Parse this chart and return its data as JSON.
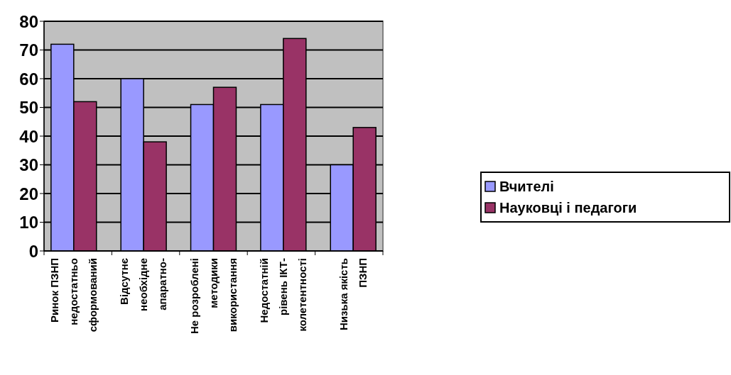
{
  "chart_data": {
    "type": "bar",
    "categories": [
      "Ринок ПЗНП\nнедостатньо\nсформований",
      "Відсутнє\nнеобхідне\nапаратно-",
      "Не розроблені\nметодики\nвикористання",
      "Недостатній\nрівень ІКТ-\nколетентності",
      "Низька якість\nПЗНП"
    ],
    "series": [
      {
        "name": "Вчителі",
        "color": "#9999ff",
        "values": [
          72,
          60,
          51,
          51,
          30
        ]
      },
      {
        "name": "Науковці і педагоги",
        "color": "#993366",
        "values": [
          52,
          38,
          57,
          74,
          43
        ]
      }
    ],
    "ylim": [
      0,
      80
    ],
    "yticks": [
      0,
      10,
      20,
      30,
      40,
      50,
      60,
      70,
      80
    ],
    "grid": "y",
    "legend": "right"
  }
}
